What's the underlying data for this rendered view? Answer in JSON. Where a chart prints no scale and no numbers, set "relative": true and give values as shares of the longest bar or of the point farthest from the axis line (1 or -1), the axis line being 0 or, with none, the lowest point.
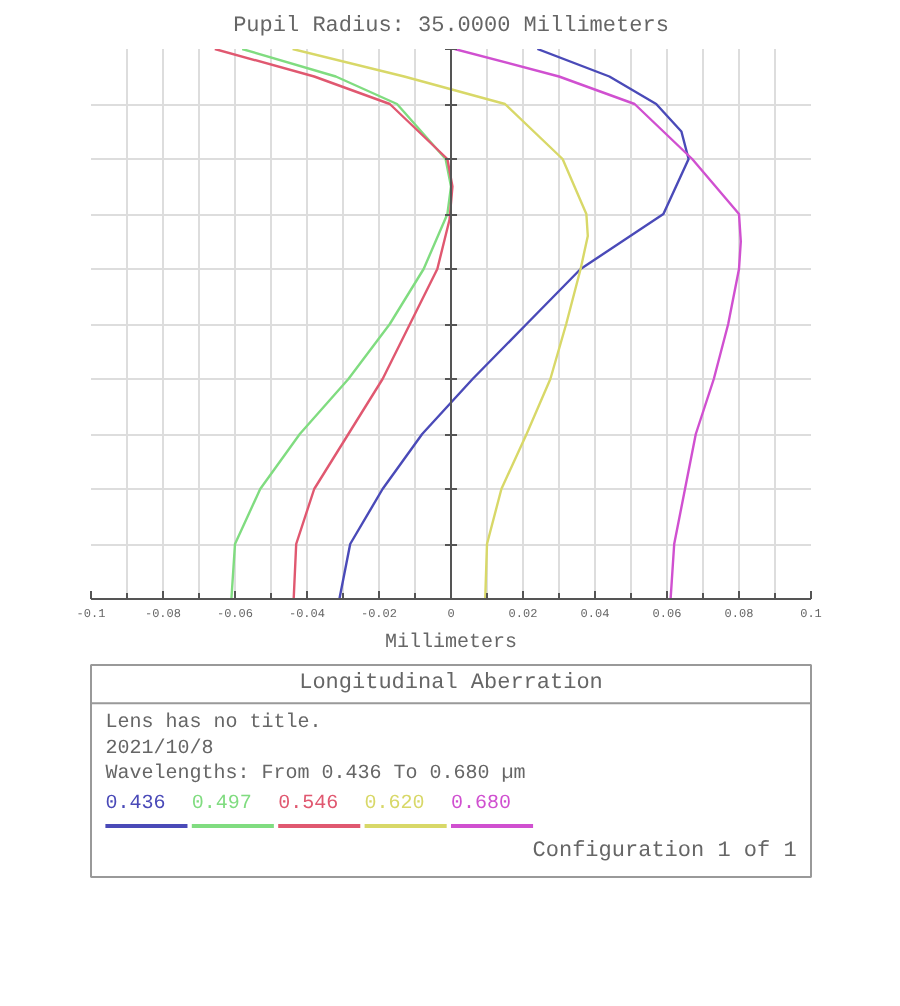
{
  "chart_data": {
    "type": "line",
    "title": "Pupil Radius: 35.0000 Millimeters",
    "xlabel": "Millimeters",
    "xlim": [
      -0.1,
      0.1
    ],
    "xticks": [
      -0.1,
      -0.08,
      -0.06,
      -0.04,
      -0.02,
      0,
      0.02,
      0.04,
      0.06,
      0.08,
      0.1
    ],
    "relative": true,
    "grid": true,
    "legend": "bottom",
    "tick_labels": "x",
    "series": [
      {
        "name": "0.436",
        "color": "#4a4ab8",
        "x": [
          -0.031,
          -0.028,
          -0.019,
          -0.008,
          0.006,
          0.021,
          0.036,
          0.059,
          0.066,
          0.064,
          0.057,
          0.044,
          0.024
        ],
        "values": [
          0,
          0.1,
          0.2,
          0.3,
          0.4,
          0.5,
          0.6,
          0.7,
          0.8,
          0.85,
          0.9,
          0.95,
          1
        ]
      },
      {
        "name": "0.497",
        "color": "#80dc80",
        "x": [
          -0.061,
          -0.06,
          -0.053,
          -0.042,
          -0.0285,
          -0.017,
          -0.0076,
          -0.001,
          0,
          -0.0015,
          -0.015,
          -0.032,
          -0.058
        ],
        "values": [
          0,
          0.1,
          0.2,
          0.3,
          0.4,
          0.5,
          0.6,
          0.7,
          0.75,
          0.8,
          0.9,
          0.95,
          1
        ]
      },
      {
        "name": "0.546",
        "color": "#e05870",
        "x": [
          -0.0437,
          -0.043,
          -0.038,
          -0.0285,
          -0.019,
          -0.0114,
          -0.0038,
          -0.0004,
          0.0004,
          -0.001,
          -0.017,
          -0.038,
          -0.0656
        ],
        "values": [
          0,
          0.1,
          0.2,
          0.3,
          0.4,
          0.5,
          0.6,
          0.69,
          0.75,
          0.8,
          0.9,
          0.95,
          1
        ]
      },
      {
        "name": "0.620",
        "color": "#d8d868",
        "x": [
          0.0095,
          0.01,
          0.014,
          0.021,
          0.0276,
          0.032,
          0.036,
          0.038,
          0.0376,
          0.031,
          0.015,
          -0.013,
          -0.044
        ],
        "values": [
          0,
          0.1,
          0.2,
          0.3,
          0.4,
          0.5,
          0.6,
          0.66,
          0.7,
          0.8,
          0.9,
          0.95,
          1
        ]
      },
      {
        "name": "0.680",
        "color": "#d050d0",
        "x": [
          0.061,
          0.062,
          0.065,
          0.068,
          0.073,
          0.077,
          0.08,
          0.0805,
          0.08,
          0.067,
          0.051,
          0.03,
          0.001
        ],
        "values": [
          0,
          0.1,
          0.2,
          0.3,
          0.4,
          0.5,
          0.6,
          0.65,
          0.7,
          0.8,
          0.9,
          0.95,
          1
        ]
      }
    ],
    "annotations": [
      "Longitudinal Aberration",
      "Lens has no title.",
      "2021/10/8",
      "Wavelengths: From 0.436 To 0.680 µm",
      "Configuration 1 of 1"
    ]
  }
}
